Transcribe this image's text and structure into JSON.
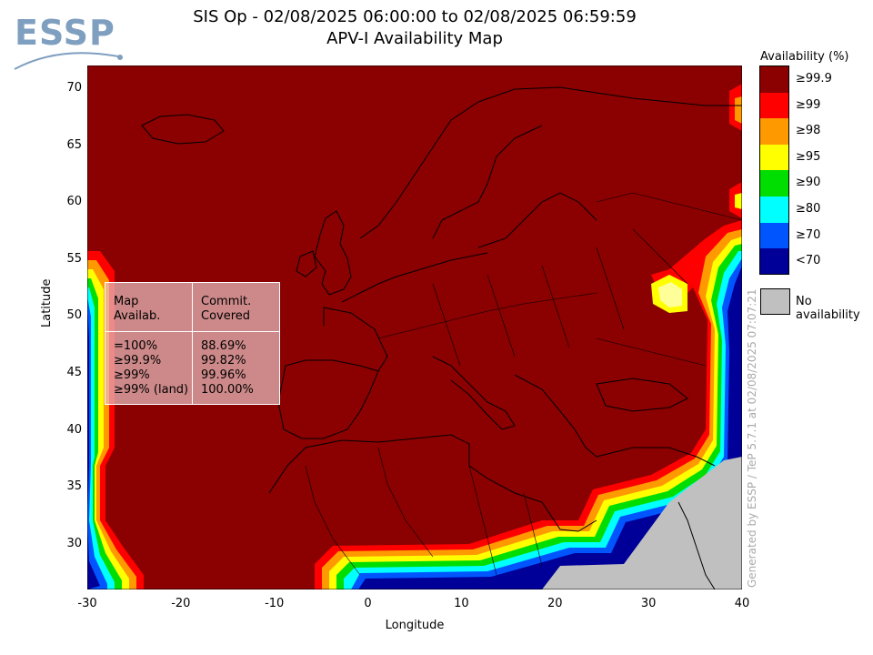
{
  "header": {
    "logo_text": "ESSP",
    "title_line1": "SIS Op - 02/08/2025 06:00:00 to 02/08/2025 06:59:59",
    "title_line2": "APV-I Availability Map"
  },
  "axes": {
    "xlabel": "Longitude",
    "ylabel": "Latitude",
    "xlim": [
      -30,
      40
    ],
    "ylim": [
      26,
      72
    ],
    "xticks": [
      "-30",
      "-20",
      "-10",
      "0",
      "10",
      "20",
      "30",
      "40"
    ],
    "yticks": [
      "30",
      "35",
      "40",
      "45",
      "50",
      "55",
      "60",
      "65",
      "70"
    ]
  },
  "legend": {
    "title": "Availability (%)",
    "items": [
      {
        "label": "≥99.9",
        "color": "#8b0000"
      },
      {
        "label": "≥99",
        "color": "#ff0000"
      },
      {
        "label": "≥98",
        "color": "#ff9900"
      },
      {
        "label": "≥95",
        "color": "#ffff00"
      },
      {
        "label": "≥90",
        "color": "#00dd00"
      },
      {
        "label": "≥80",
        "color": "#00ffff"
      },
      {
        "label": "≥70",
        "color": "#0055ff"
      },
      {
        "label": "<70",
        "color": "#000099"
      }
    ],
    "no_availability": {
      "label": "No availability",
      "color": "#c0c0c0"
    }
  },
  "stats_table": {
    "col1_header": "Map\nAvailab.",
    "col2_header": "Commit.\nCovered",
    "col1_values": "=100%\n≥99.9%\n≥99%\n≥99% (land)",
    "col2_values": "88.69%\n99.82%\n99.96%\n100.00%"
  },
  "generated_by": "Generated by ESSP / TeP 5.7.1 at 02/08/2025 07:07:21"
}
